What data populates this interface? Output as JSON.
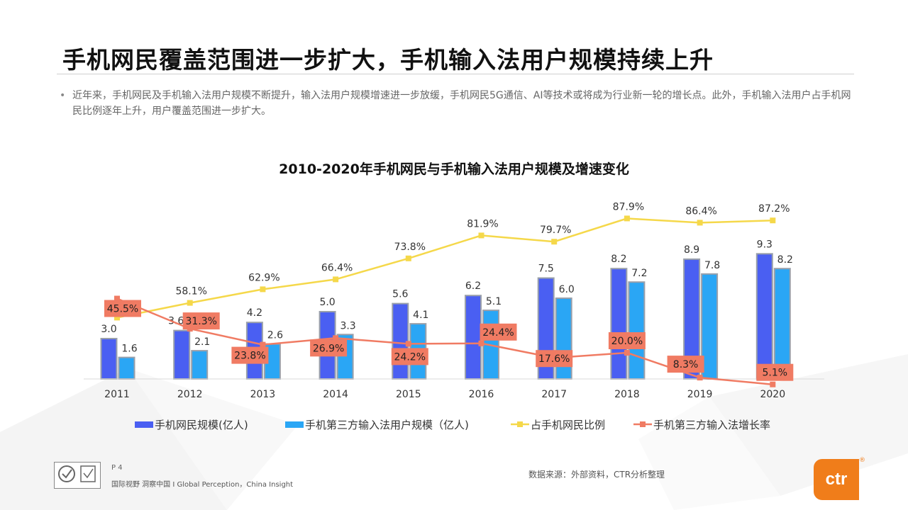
{
  "slide": {
    "title": "手机网民覆盖范围进一步扩大，手机输入法用户规模持续上升",
    "bullet_symbol": "•",
    "bullet": "近年来，手机网民及手机输入法用户规模不断提升，输入法用户规模增速进一步放缓，手机网民5G通信、AI等技术或将成为行业新一轮的增长点。此外，手机输入法用户占手机网民比例逐年上升，用户覆盖范围进一步扩大。"
  },
  "footer": {
    "page": "P 4",
    "slogan": "国际视野  洞察中国 I  Global Perception，China Insight",
    "source": "数据来源：外部资料，CTR分析整理",
    "brand": "ctr",
    "registered": "®"
  },
  "colors": {
    "mobile_netizens": "#4a5ff2",
    "ime_users": "#2aa6f5",
    "share_line": "#f5d84a",
    "growth_line": "#f07b63"
  },
  "chart_data": {
    "type": "bar",
    "title": "2010-2020年手机网民与手机输入法用户规模及增速变化",
    "categories": [
      "2011",
      "2012",
      "2013",
      "2014",
      "2015",
      "2016",
      "2017",
      "2018",
      "2019",
      "2020"
    ],
    "series": [
      {
        "name": "手机网民规模(亿人)",
        "type": "bar",
        "values": [
          3.0,
          3.6,
          4.2,
          5.0,
          5.6,
          6.2,
          7.5,
          8.2,
          8.9,
          9.3
        ]
      },
      {
        "name": "手机第三方输入法用户规模（亿人)",
        "type": "bar",
        "values": [
          1.6,
          2.1,
          2.6,
          3.3,
          4.1,
          5.1,
          6.0,
          7.2,
          7.8,
          8.2
        ]
      },
      {
        "name": "占手机网民比例",
        "type": "line",
        "unit": "%",
        "values": [
          52.9,
          58.1,
          62.9,
          66.4,
          73.8,
          81.9,
          79.7,
          87.9,
          86.4,
          87.2
        ]
      },
      {
        "name": "手机第三方输入法增长率",
        "type": "line",
        "unit": "%",
        "values": [
          45.5,
          31.3,
          23.8,
          26.9,
          24.2,
          24.4,
          17.6,
          20.0,
          8.3,
          5.1
        ]
      }
    ],
    "bar_axis_max": 10,
    "share_axis_range": [
      0,
      100
    ],
    "growth_axis_range": [
      0,
      100
    ],
    "legend_position": "bottom-center",
    "grid": false
  }
}
